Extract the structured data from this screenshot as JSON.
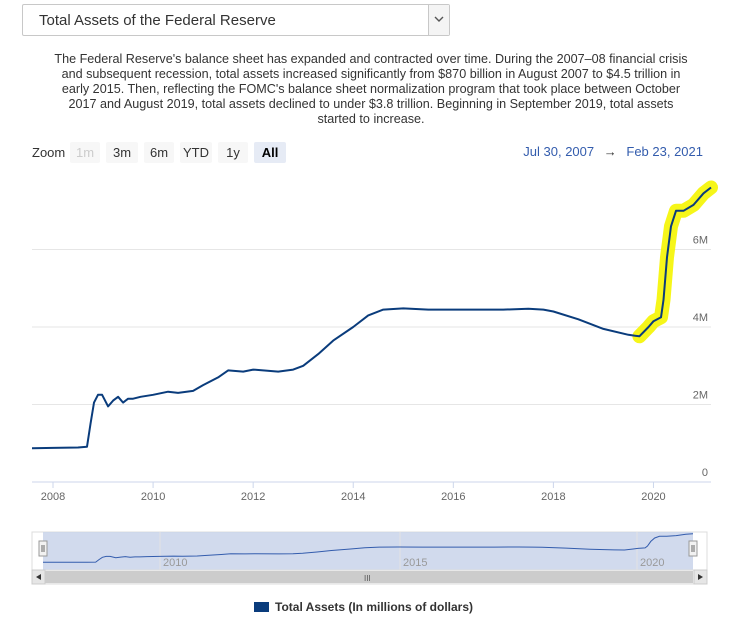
{
  "selector": {
    "value": "Total Assets of the Federal Reserve"
  },
  "description": "The Federal Reserve's balance sheet has expanded and contracted over time. During the 2007–08 financial crisis and subsequent recession, total assets increased significantly from $870 billion in August 2007 to $4.5 trillion in early 2015. Then, reflecting the FOMC's balance sheet normalization program that took place between October 2017 and August 2019, total assets declined to under $3.8 trillion. Beginning in September 2019, total assets started to increase.",
  "zoom": {
    "label": "Zoom",
    "buttons": [
      "1m",
      "3m",
      "6m",
      "YTD",
      "1y",
      "All"
    ],
    "selected": "All",
    "disabled": [
      "1m"
    ]
  },
  "date_range": {
    "from": "Jul 30, 2007",
    "arrow": "→",
    "to": "Feb 23, 2021"
  },
  "navigator": {
    "labels": [
      "2010",
      "2015",
      "2020"
    ],
    "scroll_grip": "III"
  },
  "legend": {
    "label": "Total Assets (In millions of dollars)"
  },
  "colors": {
    "series": "#0a3c7c",
    "highlight": "#f5f500",
    "navigator_fill": "#c9d4ea",
    "selected_zoom": "#e6ebf5"
  },
  "chart_data": {
    "type": "line",
    "title": "",
    "xlabel": "",
    "ylabel": "",
    "grid": true,
    "legend_position": "bottom",
    "x_ticks": [
      "2008",
      "2010",
      "2012",
      "2014",
      "2016",
      "2018",
      "2020"
    ],
    "y_ticks": [
      "0",
      "2M",
      "4M",
      "6M"
    ],
    "xlim": [
      2007.58,
      2021.15
    ],
    "ylim": [
      0,
      8000000
    ],
    "highlight": {
      "from": 2019.72,
      "to": 2021.15,
      "color": "yellow"
    },
    "series": [
      {
        "name": "Total Assets (In millions of dollars)",
        "x": [
          2007.58,
          2008.0,
          2008.5,
          2008.68,
          2008.75,
          2008.82,
          2008.9,
          2008.98,
          2009.1,
          2009.2,
          2009.3,
          2009.4,
          2009.5,
          2009.6,
          2009.75,
          2010.0,
          2010.3,
          2010.5,
          2010.8,
          2011.0,
          2011.3,
          2011.5,
          2011.8,
          2012.0,
          2012.5,
          2012.8,
          2013.0,
          2013.3,
          2013.6,
          2014.0,
          2014.3,
          2014.6,
          2015.0,
          2015.5,
          2016.0,
          2016.5,
          2017.0,
          2017.5,
          2017.8,
          2018.0,
          2018.5,
          2019.0,
          2019.5,
          2019.72,
          2019.9,
          2020.0,
          2020.15,
          2020.2,
          2020.27,
          2020.35,
          2020.45,
          2020.6,
          2020.8,
          2021.0,
          2021.15
        ],
        "values": [
          870000,
          880000,
          890000,
          910000,
          1500000,
          2050000,
          2250000,
          2250000,
          1950000,
          2100000,
          2200000,
          2050000,
          2150000,
          2150000,
          2200000,
          2250000,
          2330000,
          2300000,
          2350000,
          2500000,
          2700000,
          2880000,
          2850000,
          2900000,
          2850000,
          2900000,
          3000000,
          3300000,
          3650000,
          4000000,
          4300000,
          4450000,
          4480000,
          4450000,
          4450000,
          4450000,
          4450000,
          4470000,
          4450000,
          4400000,
          4200000,
          3950000,
          3800000,
          3760000,
          4000000,
          4150000,
          4250000,
          4700000,
          5800000,
          6600000,
          7000000,
          7000000,
          7150000,
          7450000,
          7600000
        ]
      }
    ]
  }
}
